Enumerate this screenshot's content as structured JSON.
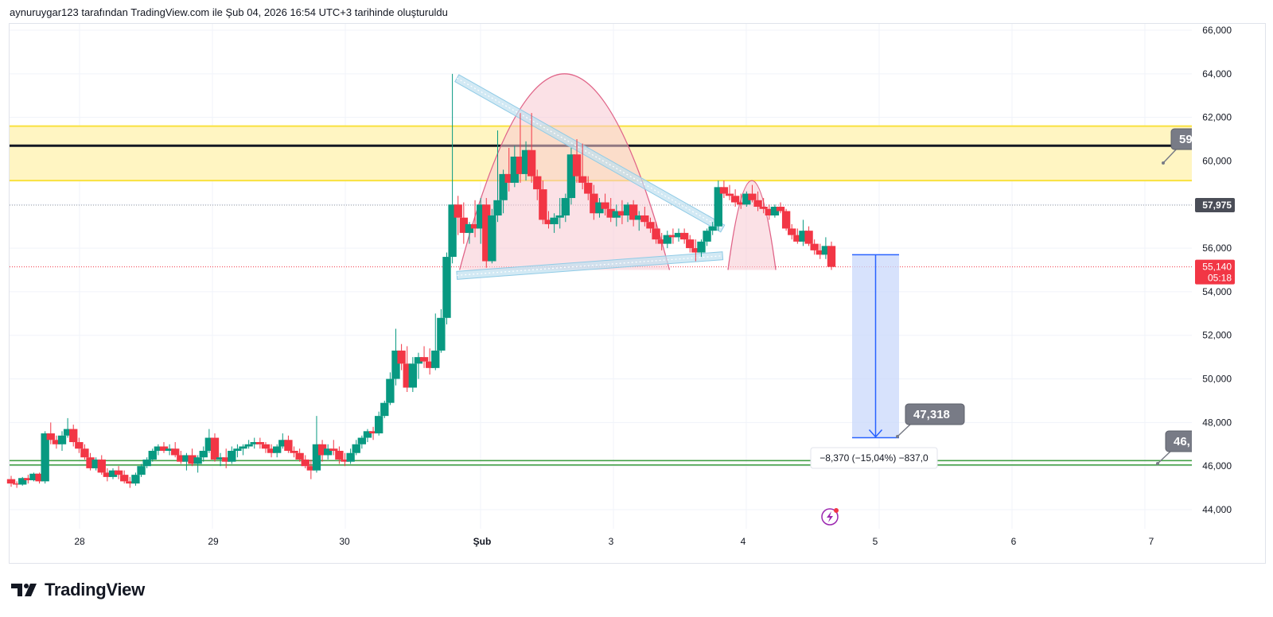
{
  "header": {
    "attribution": "aynuruygar123 tarafından TradingView.com ile Şub 04, 2026 16:54 UTC+3 tarihinde oluşturuldu"
  },
  "brand": {
    "name": "TradingView"
  },
  "colors": {
    "up": "#089981",
    "down": "#f23645",
    "resistance_line": "#131722",
    "yellow_zone": "#fff5c2",
    "yellow_border": "#f9e13e",
    "green_support": "#43a047",
    "trend_channel": "#90cbe6",
    "arc_fill": "#f8c8d2",
    "arc_stroke": "#e06488",
    "measure_fill": "#c9d8fb",
    "measure_line": "#2962ff",
    "label_gray": "#787b86"
  },
  "chart_data": {
    "type": "candlestick",
    "y_axis": {
      "ticks": [
        "66,000",
        "64,000",
        "62,000",
        "60,000",
        "58,000",
        "56,000",
        "54,000",
        "52,000",
        "50,000",
        "48,000",
        "46,000",
        "44,000"
      ],
      "min": 42600,
      "max": 66200
    },
    "x_axis": {
      "ticks": [
        "28",
        "29",
        "30",
        "Şub",
        "3",
        "4",
        "5",
        "6",
        "7"
      ]
    },
    "last_price": {
      "value": "55,140",
      "countdown": "05:18"
    },
    "marked_price": {
      "value": "57,975"
    },
    "resistance_line_value": 60700,
    "yellow_zone": [
      59100,
      61600
    ],
    "green_support_values": [
      46050,
      46250
    ],
    "price_callouts": [
      {
        "text": "59",
        "anchor_price": 59950
      },
      {
        "text": "47,318",
        "anchor_price": 47300
      },
      {
        "text": "46,",
        "anchor_price": 46050
      }
    ],
    "measure": {
      "top_price": 55700,
      "bottom_price": 47300,
      "label": "−8,370 (−15,04%) −837,0"
    },
    "candles": [
      [
        0.0,
        45400,
        45550,
        45050,
        45200
      ],
      [
        0.1,
        45200,
        45300,
        45000,
        45150
      ],
      [
        0.2,
        45150,
        45500,
        45100,
        45450
      ],
      [
        0.3,
        45450,
        45600,
        45200,
        45350
      ],
      [
        0.4,
        45350,
        45700,
        45300,
        45650
      ],
      [
        0.5,
        45650,
        45700,
        45200,
        45300
      ],
      [
        0.6,
        45300,
        47600,
        45200,
        47500
      ],
      [
        0.7,
        47500,
        48000,
        47000,
        47200
      ],
      [
        0.8,
        47200,
        47400,
        46800,
        47000
      ],
      [
        0.9,
        47000,
        47600,
        46700,
        47400
      ],
      [
        1.0,
        47400,
        48200,
        47300,
        47700
      ],
      [
        1.1,
        47700,
        47900,
        46900,
        47100
      ],
      [
        1.2,
        47100,
        47300,
        46600,
        46800
      ],
      [
        1.3,
        46800,
        47000,
        46300,
        46400
      ],
      [
        1.4,
        46400,
        46600,
        45800,
        45900
      ],
      [
        1.5,
        45900,
        46400,
        45800,
        46300
      ],
      [
        1.6,
        46300,
        46500,
        45600,
        45700
      ],
      [
        1.7,
        45700,
        45900,
        45300,
        45500
      ],
      [
        1.8,
        45500,
        45900,
        45400,
        45800
      ],
      [
        1.9,
        45800,
        46000,
        45400,
        45600
      ],
      [
        2.0,
        45600,
        45800,
        45200,
        45300
      ],
      [
        2.1,
        45300,
        45500,
        45000,
        45200
      ],
      [
        2.2,
        45200,
        45700,
        45100,
        45600
      ],
      [
        2.3,
        45600,
        46100,
        45500,
        46000
      ],
      [
        2.4,
        46000,
        46400,
        45900,
        46300
      ],
      [
        2.5,
        46300,
        46800,
        46200,
        46700
      ],
      [
        2.6,
        46700,
        47000,
        46500,
        46900
      ],
      [
        2.7,
        46900,
        47100,
        46600,
        46700
      ],
      [
        2.8,
        46700,
        47000,
        46500,
        46800
      ],
      [
        2.9,
        46800,
        47100,
        46400,
        46500
      ],
      [
        3.0,
        46500,
        46700,
        46100,
        46200
      ],
      [
        3.1,
        46200,
        46600,
        45800,
        46500
      ],
      [
        3.2,
        46500,
        46800,
        46000,
        46100
      ],
      [
        3.3,
        46100,
        46500,
        45700,
        46400
      ],
      [
        3.4,
        46400,
        46900,
        46200,
        46700
      ],
      [
        3.5,
        46700,
        47700,
        46600,
        47300
      ],
      [
        3.6,
        47300,
        47500,
        46200,
        46300
      ],
      [
        3.7,
        46300,
        46600,
        46000,
        46400
      ],
      [
        3.8,
        46400,
        46800,
        45900,
        46200
      ],
      [
        3.9,
        46200,
        46900,
        46100,
        46700
      ],
      [
        4.0,
        46700,
        47000,
        46400,
        46800
      ],
      [
        4.1,
        46800,
        47000,
        46500,
        46900
      ],
      [
        4.2,
        46900,
        47200,
        46800,
        47000
      ],
      [
        4.3,
        47000,
        47300,
        46800,
        47100
      ],
      [
        4.4,
        47100,
        47300,
        46800,
        47000
      ],
      [
        4.5,
        47000,
        47100,
        46600,
        46800
      ],
      [
        4.6,
        46800,
        47000,
        46400,
        46600
      ],
      [
        4.7,
        46600,
        47000,
        46400,
        46900
      ],
      [
        4.8,
        46900,
        47500,
        46800,
        47200
      ],
      [
        4.9,
        47200,
        47400,
        46600,
        46700
      ],
      [
        5.0,
        46700,
        46900,
        46400,
        46600
      ],
      [
        5.1,
        46600,
        46800,
        46200,
        46300
      ],
      [
        5.2,
        46300,
        46500,
        45900,
        46000
      ],
      [
        5.3,
        46000,
        46300,
        45400,
        45800
      ],
      [
        5.4,
        45800,
        48300,
        45700,
        47000
      ],
      [
        5.5,
        47000,
        47200,
        46200,
        46500
      ],
      [
        5.6,
        46500,
        47000,
        46300,
        46800
      ],
      [
        5.7,
        46800,
        47200,
        46500,
        46700
      ],
      [
        5.8,
        46700,
        46900,
        46100,
        46300
      ],
      [
        5.9,
        46300,
        46600,
        46000,
        46200
      ],
      [
        6.0,
        46200,
        46800,
        46100,
        46600
      ],
      [
        6.1,
        46600,
        47200,
        46500,
        47000
      ],
      [
        6.2,
        47000,
        47400,
        46800,
        47300
      ],
      [
        6.3,
        47300,
        47700,
        47100,
        47600
      ],
      [
        6.4,
        47600,
        47800,
        47200,
        47500
      ],
      [
        6.5,
        47500,
        48500,
        47400,
        48300
      ],
      [
        6.6,
        48300,
        49000,
        48200,
        48900
      ],
      [
        6.7,
        48900,
        50300,
        48800,
        50000
      ],
      [
        6.8,
        50000,
        52300,
        49700,
        51300
      ],
      [
        6.9,
        51300,
        51600,
        50400,
        50700
      ],
      [
        7.0,
        50700,
        51500,
        49400,
        49600
      ],
      [
        7.1,
        49600,
        51000,
        49400,
        50700
      ],
      [
        7.2,
        50700,
        51200,
        50000,
        51000
      ],
      [
        7.3,
        51000,
        51500,
        50500,
        50800
      ],
      [
        7.4,
        50800,
        51400,
        50200,
        50500
      ],
      [
        7.5,
        50500,
        53000,
        50400,
        51300
      ],
      [
        7.6,
        51300,
        53200,
        51200,
        52800
      ],
      [
        7.7,
        52800,
        55800,
        52500,
        55600
      ],
      [
        7.8,
        55600,
        64000,
        55300,
        58000
      ],
      [
        7.9,
        58000,
        58400,
        56600,
        57400
      ],
      [
        8.0,
        57400,
        58100,
        56200,
        56700
      ],
      [
        8.1,
        56700,
        57200,
        56200,
        57100
      ],
      [
        8.2,
        57100,
        58200,
        56500,
        56900
      ],
      [
        8.3,
        56900,
        58300,
        56200,
        58000
      ],
      [
        8.4,
        58000,
        58300,
        55100,
        55400
      ],
      [
        8.5,
        55400,
        57800,
        55300,
        57500
      ],
      [
        8.6,
        57500,
        61400,
        57200,
        58200
      ],
      [
        8.7,
        58200,
        59600,
        57600,
        59400
      ],
      [
        8.8,
        59400,
        60600,
        58600,
        59000
      ],
      [
        8.9,
        59000,
        60700,
        58800,
        60200
      ],
      [
        9.0,
        60200,
        62200,
        59000,
        59400
      ],
      [
        9.1,
        59400,
        60900,
        59100,
        60500
      ],
      [
        9.2,
        60500,
        62200,
        59000,
        59300
      ],
      [
        9.3,
        59300,
        59600,
        58200,
        58700
      ],
      [
        9.4,
        58700,
        59100,
        57100,
        57300
      ],
      [
        9.5,
        57300,
        57700,
        56900,
        57100
      ],
      [
        9.6,
        57100,
        57600,
        56700,
        57400
      ],
      [
        9.7,
        57400,
        58300,
        56900,
        57500
      ],
      [
        9.8,
        57500,
        58500,
        57200,
        58300
      ],
      [
        9.9,
        58300,
        60600,
        58000,
        60300
      ],
      [
        10.0,
        60300,
        61000,
        59000,
        59300
      ],
      [
        10.1,
        59300,
        60800,
        58700,
        59000
      ],
      [
        10.2,
        59000,
        59300,
        58200,
        58500
      ],
      [
        10.3,
        58500,
        58900,
        57300,
        57600
      ],
      [
        10.4,
        57600,
        58300,
        57400,
        58100
      ],
      [
        10.5,
        58100,
        58500,
        57500,
        57800
      ],
      [
        10.6,
        57800,
        58300,
        57200,
        57400
      ],
      [
        10.7,
        57400,
        58000,
        57000,
        57700
      ],
      [
        10.8,
        57700,
        58200,
        57100,
        57500
      ],
      [
        10.9,
        57500,
        58100,
        57200,
        58000
      ],
      [
        11.0,
        58000,
        58200,
        57000,
        57300
      ],
      [
        11.1,
        57300,
        57700,
        56800,
        57500
      ],
      [
        11.2,
        57500,
        57900,
        57000,
        57200
      ],
      [
        11.3,
        57200,
        57400,
        56700,
        56900
      ],
      [
        11.4,
        56900,
        57200,
        56200,
        56400
      ],
      [
        11.5,
        56400,
        56700,
        55900,
        56200
      ],
      [
        11.6,
        56200,
        56800,
        56000,
        56600
      ],
      [
        11.7,
        56600,
        56900,
        56200,
        56500
      ],
      [
        11.8,
        56500,
        56900,
        56300,
        56700
      ],
      [
        11.9,
        56700,
        56900,
        56200,
        56400
      ],
      [
        12.0,
        56400,
        56600,
        55800,
        56000
      ],
      [
        12.1,
        56000,
        56400,
        55400,
        55800
      ],
      [
        12.2,
        55800,
        56400,
        55600,
        56300
      ],
      [
        12.3,
        56300,
        56900,
        56100,
        56800
      ],
      [
        12.4,
        56800,
        57200,
        56600,
        57000
      ],
      [
        12.5,
        57000,
        59100,
        56800,
        58800
      ],
      [
        12.6,
        58800,
        59100,
        58300,
        58500
      ],
      [
        12.7,
        58500,
        58900,
        58200,
        58400
      ],
      [
        12.8,
        58400,
        58700,
        57900,
        58100
      ],
      [
        12.9,
        58100,
        58500,
        57800,
        58000
      ],
      [
        13.0,
        58000,
        58600,
        57900,
        58500
      ],
      [
        13.1,
        58500,
        58900,
        58100,
        58200
      ],
      [
        13.2,
        58200,
        58600,
        57700,
        57900
      ],
      [
        13.3,
        57900,
        58300,
        57600,
        57800
      ],
      [
        13.4,
        57800,
        58000,
        57300,
        57500
      ],
      [
        13.5,
        57500,
        58000,
        57400,
        57900
      ],
      [
        13.6,
        57900,
        58100,
        57600,
        57700
      ],
      [
        13.7,
        57700,
        57800,
        56800,
        56900
      ],
      [
        13.8,
        56900,
        57100,
        56400,
        56600
      ],
      [
        13.9,
        56600,
        56900,
        56200,
        56300
      ],
      [
        14.0,
        56300,
        57300,
        56100,
        56800
      ],
      [
        14.1,
        56800,
        57000,
        56100,
        56200
      ],
      [
        14.2,
        56200,
        56400,
        55700,
        55900
      ],
      [
        14.3,
        55900,
        56200,
        55500,
        55700
      ],
      [
        14.4,
        55700,
        56500,
        55500,
        56100
      ],
      [
        14.5,
        56100,
        56300,
        55000,
        55140
      ]
    ]
  }
}
